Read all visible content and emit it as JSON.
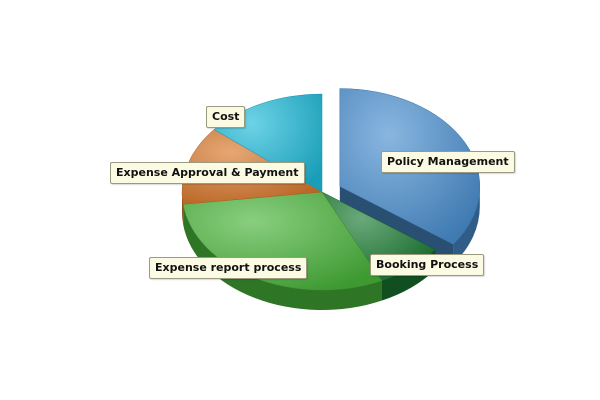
{
  "chart_data": {
    "type": "pie",
    "style": "3d-exploded",
    "slices": [
      {
        "label": "Policy Management",
        "value": 35,
        "color": "#4a8fd0",
        "exploded": true
      },
      {
        "label": "Booking Process",
        "value": 8,
        "color": "#1a7a32",
        "exploded": false
      },
      {
        "label": "Expense report process",
        "value": 30,
        "color": "#49b43a",
        "exploded": false
      },
      {
        "label": "Expense Approval & Payment",
        "value": 13,
        "color": "#d8772a",
        "exploded": false
      },
      {
        "label": "Cost",
        "value": 14,
        "color": "#1ebad8",
        "exploded": false
      }
    ],
    "start_angle_deg": -90,
    "direction": "clockwise",
    "legend": "none",
    "labels": "callout boxes next to slices"
  }
}
